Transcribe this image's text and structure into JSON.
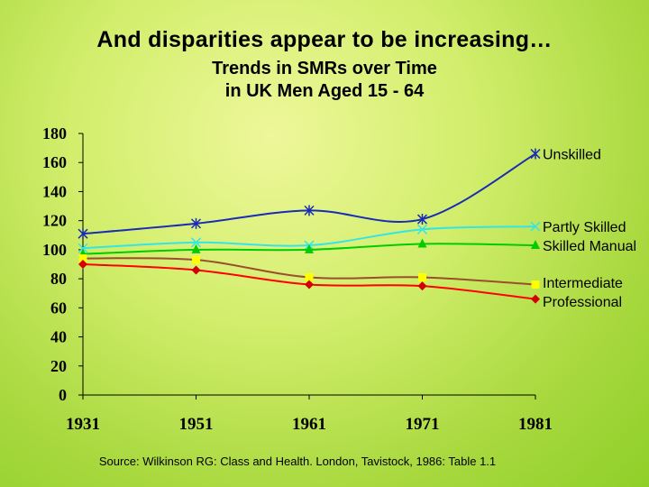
{
  "slide": {
    "title": "And disparities appear to be increasing…",
    "subtitle_line1": "Trends in SMRs over Time",
    "subtitle_line2": "in UK Men Aged 15 - 64",
    "source": "Source: Wilkinson RG: Class and Health.  London, Tavistock, 1986: Table 1.1"
  },
  "chart_data": {
    "type": "line",
    "title": "",
    "xlabel": "",
    "ylabel": "",
    "x": [
      "1931",
      "1951",
      "1961",
      "1971",
      "1981"
    ],
    "ylim": [
      0,
      180
    ],
    "yticks": [
      0,
      20,
      40,
      60,
      80,
      100,
      120,
      140,
      160,
      180
    ],
    "grid": false,
    "series": [
      {
        "name": "Unskilled",
        "values": [
          111,
          118,
          127,
          121,
          166
        ],
        "color": "#1a2bb5",
        "marker": "star"
      },
      {
        "name": "Partly Skilled",
        "values": [
          101,
          105,
          103,
          114,
          116
        ],
        "color": "#33e6e6",
        "marker": "x"
      },
      {
        "name": "Skilled Manual",
        "values": [
          97,
          100,
          100,
          104,
          103
        ],
        "color": "#00cc00",
        "marker": "triangle"
      },
      {
        "name": "Intermediate",
        "values": [
          94,
          93,
          81,
          81,
          76
        ],
        "color": "#9a4e2c",
        "marker": "square",
        "marker_color": "#ffff00"
      },
      {
        "name": "Professional",
        "values": [
          90,
          86,
          76,
          75,
          66
        ],
        "color": "#ff0000",
        "marker": "diamond",
        "marker_color": "#d40000"
      }
    ],
    "label_groups": [
      [
        "Unskilled"
      ],
      [
        "Partly Skilled",
        "Skilled Manual"
      ],
      [
        "Intermediate",
        "Professional"
      ]
    ]
  }
}
